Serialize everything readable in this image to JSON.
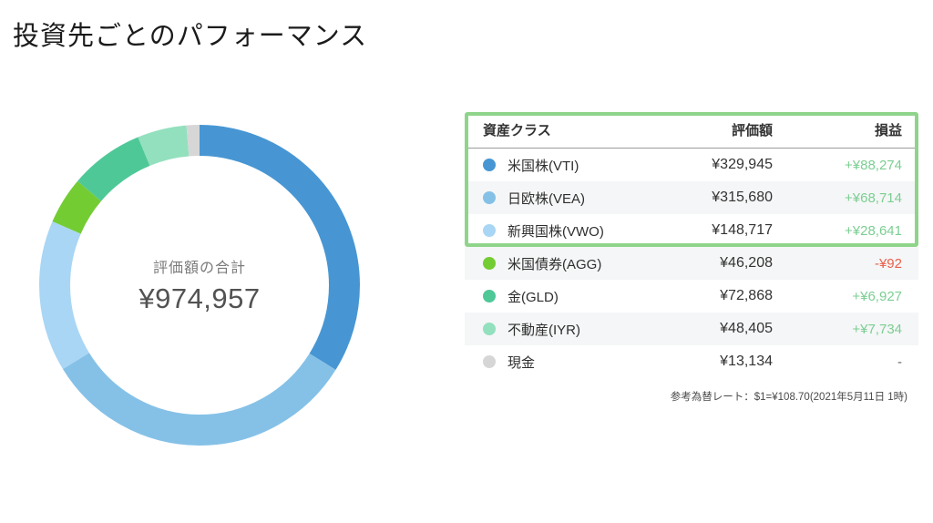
{
  "page": {
    "title": "投資先ごとのパフォーマンス"
  },
  "donut": {
    "center_label": "評価額の合計",
    "center_value": "¥974,957"
  },
  "table": {
    "headers": {
      "asset_class": "資産クラス",
      "valuation": "評価額",
      "profit_loss": "損益"
    },
    "rows": [
      {
        "label": "米国株(VTI)",
        "valuation": "¥329,945",
        "profit_loss": "+¥88,274",
        "pl_state": "gain"
      },
      {
        "label": "日欧株(VEA)",
        "valuation": "¥315,680",
        "profit_loss": "+¥68,714",
        "pl_state": "gain"
      },
      {
        "label": "新興国株(VWO)",
        "valuation": "¥148,717",
        "profit_loss": "+¥28,641",
        "pl_state": "gain"
      },
      {
        "label": "米国債券(AGG)",
        "valuation": "¥46,208",
        "profit_loss": "-¥92",
        "pl_state": "loss"
      },
      {
        "label": "金(GLD)",
        "valuation": "¥72,868",
        "profit_loss": "+¥6,927",
        "pl_state": "gain"
      },
      {
        "label": "不動産(IYR)",
        "valuation": "¥48,405",
        "profit_loss": "+¥7,734",
        "pl_state": "gain"
      },
      {
        "label": "現金",
        "valuation": "¥13,134",
        "profit_loss": "-",
        "pl_state": "none"
      }
    ],
    "footnote": "参考為替レート：$1=¥108.70(2021年5月11日 1時)"
  },
  "chart_data": {
    "type": "pie",
    "subtype": "donut",
    "title": "評価額の合計",
    "center_label": "評価額の合計",
    "center_value_text": "¥974,957",
    "total_value": 974957,
    "categories": [
      "米国株(VTI)",
      "日欧株(VEA)",
      "新興国株(VWO)",
      "米国債券(AGG)",
      "金(GLD)",
      "不動産(IYR)",
      "現金"
    ],
    "values": [
      329945,
      315680,
      148717,
      46208,
      72868,
      48405,
      13134
    ],
    "colors": [
      "#4796d3",
      "#85c1e7",
      "#a9d6f4",
      "#74cc33",
      "#4fc898",
      "#93e0be",
      "#d6d6d6"
    ],
    "start_angle_deg": 0,
    "direction": "clockwise",
    "inner_radius_ratio": 0.81,
    "legend_position": "table-right"
  },
  "colors": {
    "gain": "#7bce92",
    "loss": "#e9604b",
    "neutral": "#666666",
    "highlight_border": "#8fd48b",
    "row_stripe": "#f5f6f7"
  }
}
